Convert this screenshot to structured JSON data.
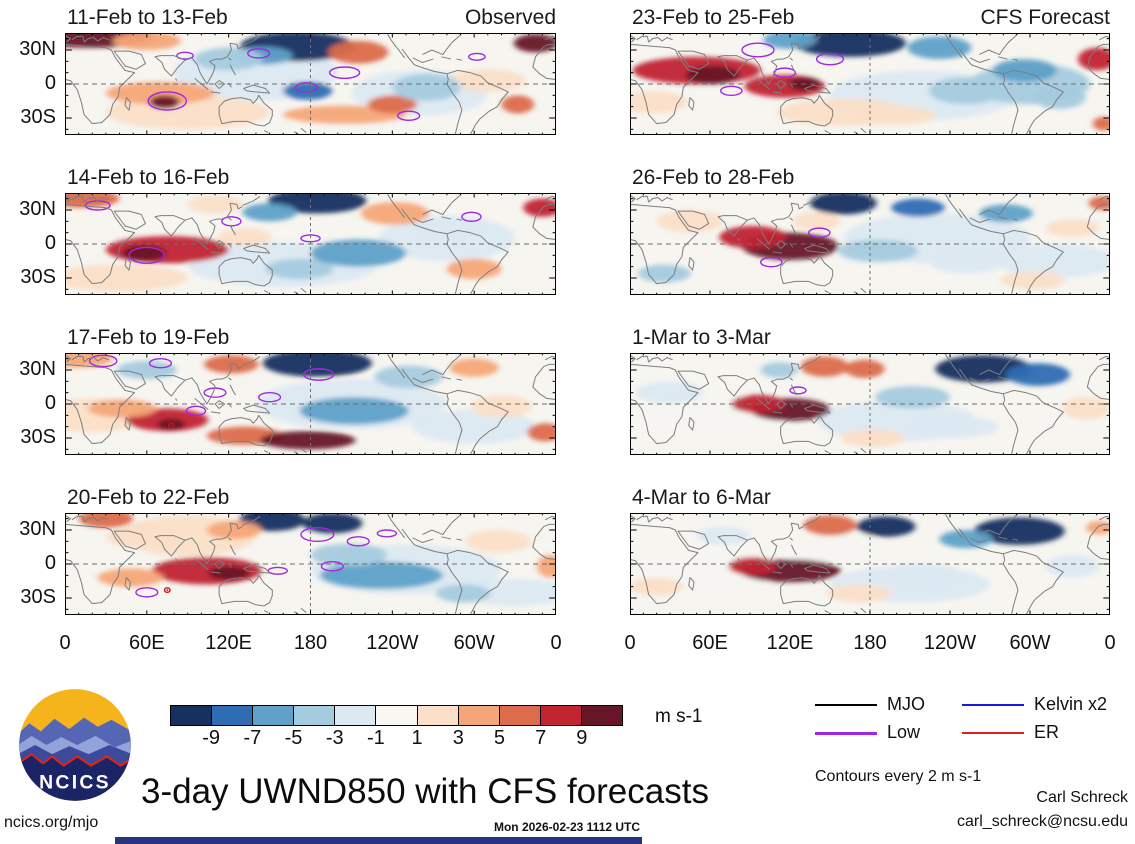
{
  "chart_data": {
    "type": "heatmap",
    "title": "3-day UWND850 with CFS forecasts",
    "contour_note": "Contours every 2 m s-1",
    "axes": {
      "x_ticks": [
        "0",
        "60E",
        "120E",
        "180",
        "120W",
        "60W",
        "0"
      ],
      "y_ticks": [
        "30N",
        "0",
        "30S"
      ],
      "y_tick_lats": [
        30,
        0,
        -30
      ],
      "lon_range": [
        0,
        360
      ],
      "lat_range": [
        -45,
        45
      ]
    },
    "colorbar": {
      "boundary_labels": [
        "-9",
        "-7",
        "-5",
        "-3",
        "-1",
        "1",
        "3",
        "5",
        "7",
        "9"
      ],
      "colors": [
        "#16305f",
        "#2e6db4",
        "#5fa1c9",
        "#a5cbdf",
        "#dce9f2",
        "#f7f6f1",
        "#fbdfc8",
        "#f5a678",
        "#dd6b4c",
        "#c22432",
        "#671527"
      ],
      "unit": "m s-1"
    },
    "map_colors": {
      "background": "#f6f5f0",
      "coastline": "#7d7d7d",
      "gridline": "#6e6e6e",
      "contour_low": "#a128e0",
      "marker": "#cc1111"
    },
    "legend": [
      {
        "label": "MJO",
        "color": "#000000",
        "width": 2
      },
      {
        "label": "Low",
        "color": "#a128e0",
        "width": 3
      },
      {
        "label": "Kelvin x2",
        "color": "#1a1ae6",
        "width": 2
      },
      {
        "label": "ER",
        "color": "#e02020",
        "width": 2
      }
    ],
    "panels": [
      {
        "title": "11-Feb to 13-Feb",
        "annotation": "Observed",
        "column": 0,
        "row": 0,
        "features": [
          [
            140,
            10,
            60,
            25,
            4
          ],
          [
            260,
            -8,
            50,
            20,
            4
          ],
          [
            90,
            -25,
            60,
            15,
            6
          ],
          [
            18,
            42,
            48,
            10,
            10
          ],
          [
            60,
            38,
            25,
            8,
            7
          ],
          [
            170,
            33,
            42,
            13,
            0
          ],
          [
            145,
            25,
            22,
            8,
            2
          ],
          [
            215,
            28,
            22,
            10,
            8
          ],
          [
            120,
            22,
            25,
            10,
            3
          ],
          [
            70,
            -8,
            40,
            10,
            7
          ],
          [
            73,
            -16,
            11,
            6,
            10
          ],
          [
            178,
            -6,
            18,
            8,
            1
          ],
          [
            205,
            -27,
            45,
            8,
            7
          ],
          [
            240,
            -18,
            18,
            8,
            8
          ],
          [
            345,
            36,
            16,
            8,
            10
          ],
          [
            310,
            3,
            28,
            10,
            6
          ],
          [
            265,
            -3,
            25,
            12,
            3
          ],
          [
            332,
            -18,
            12,
            8,
            8
          ]
        ],
        "contours": [
          [
            75,
            -15,
            14,
            8
          ],
          [
            142,
            27,
            8,
            4
          ],
          [
            205,
            10,
            11,
            5
          ],
          [
            177,
            -3,
            8,
            4
          ],
          [
            252,
            -28,
            8,
            4
          ],
          [
            302,
            24,
            6,
            3
          ],
          [
            88,
            25,
            6,
            3
          ]
        ],
        "markers": []
      },
      {
        "title": "14-Feb to 16-Feb",
        "annotation": "",
        "column": 0,
        "row": 1,
        "features": [
          [
            160,
            -18,
            70,
            20,
            4
          ],
          [
            280,
            5,
            50,
            20,
            4
          ],
          [
            40,
            -30,
            50,
            12,
            6
          ],
          [
            12,
            40,
            28,
            8,
            8
          ],
          [
            185,
            38,
            36,
            11,
            0
          ],
          [
            150,
            28,
            20,
            8,
            2
          ],
          [
            75,
            -5,
            45,
            12,
            9
          ],
          [
            58,
            -8,
            16,
            7,
            10
          ],
          [
            132,
            6,
            20,
            8,
            6
          ],
          [
            172,
            -22,
            25,
            9,
            3
          ],
          [
            215,
            -8,
            35,
            12,
            2
          ],
          [
            242,
            27,
            25,
            10,
            7
          ],
          [
            300,
            -22,
            20,
            9,
            7
          ],
          [
            350,
            32,
            14,
            8,
            9
          ],
          [
            282,
            12,
            24,
            10,
            4
          ],
          [
            110,
            35,
            20,
            8,
            6
          ]
        ],
        "contours": [
          [
            60,
            -10,
            13,
            7
          ],
          [
            122,
            20,
            7,
            4
          ],
          [
            298,
            24,
            7,
            4
          ],
          [
            24,
            34,
            9,
            4
          ],
          [
            180,
            5,
            7,
            3
          ]
        ],
        "markers": []
      },
      {
        "title": "17-Feb to 19-Feb",
        "annotation": "",
        "column": 0,
        "row": 2,
        "features": [
          [
            210,
            0,
            70,
            22,
            4
          ],
          [
            300,
            -20,
            45,
            15,
            4
          ],
          [
            20,
            -10,
            40,
            15,
            6
          ],
          [
            10,
            40,
            25,
            8,
            7
          ],
          [
            185,
            36,
            40,
            12,
            0
          ],
          [
            122,
            35,
            20,
            8,
            8
          ],
          [
            75,
            -14,
            30,
            10,
            9
          ],
          [
            78,
            -18,
            10,
            5,
            10
          ],
          [
            42,
            -4,
            25,
            8,
            7
          ],
          [
            132,
            -28,
            28,
            8,
            8
          ],
          [
            178,
            -32,
            35,
            8,
            10
          ],
          [
            212,
            -6,
            40,
            12,
            2
          ],
          [
            252,
            24,
            25,
            10,
            3
          ],
          [
            320,
            -2,
            22,
            10,
            6
          ],
          [
            352,
            -25,
            13,
            8,
            8
          ],
          [
            300,
            32,
            18,
            8,
            7
          ],
          [
            60,
            30,
            22,
            8,
            3
          ]
        ],
        "contours": [
          [
            28,
            38,
            10,
            5
          ],
          [
            70,
            36,
            8,
            4
          ],
          [
            110,
            10,
            8,
            4
          ],
          [
            150,
            6,
            8,
            4
          ],
          [
            186,
            26,
            11,
            5
          ],
          [
            96,
            -6,
            7,
            4
          ]
        ],
        "markers": [
          [
            78,
            -19
          ]
        ]
      },
      {
        "title": "20-Feb to 22-Feb",
        "annotation": "",
        "column": 0,
        "row": 3,
        "features": [
          [
            250,
            -5,
            70,
            22,
            4
          ],
          [
            90,
            25,
            50,
            18,
            6
          ],
          [
            330,
            -25,
            40,
            12,
            4
          ],
          [
            152,
            39,
            24,
            10,
            0
          ],
          [
            196,
            36,
            22,
            9,
            0
          ],
          [
            124,
            30,
            20,
            8,
            7
          ],
          [
            58,
            24,
            28,
            10,
            6
          ],
          [
            104,
            -6,
            40,
            12,
            9
          ],
          [
            120,
            -8,
            15,
            6,
            10
          ],
          [
            48,
            -12,
            24,
            8,
            7
          ],
          [
            232,
            -10,
            45,
            12,
            2
          ],
          [
            208,
            8,
            28,
            10,
            3
          ],
          [
            318,
            20,
            24,
            10,
            6
          ],
          [
            292,
            -26,
            20,
            8,
            3
          ],
          [
            356,
            -2,
            10,
            10,
            7
          ],
          [
            30,
            40,
            20,
            8,
            8
          ]
        ],
        "contours": [
          [
            185,
            26,
            12,
            6
          ],
          [
            215,
            20,
            8,
            4
          ],
          [
            236,
            27,
            7,
            3
          ],
          [
            196,
            -2,
            8,
            4
          ],
          [
            156,
            -6,
            7,
            3
          ],
          [
            60,
            -25,
            8,
            4
          ]
        ],
        "markers": [
          [
            75,
            -23
          ]
        ]
      },
      {
        "title": "23-Feb to 25-Feb",
        "annotation": "CFS Forecast",
        "column": 1,
        "row": 0,
        "features": [
          [
            220,
            -10,
            70,
            22,
            4
          ],
          [
            300,
            0,
            45,
            18,
            3
          ],
          [
            160,
            -25,
            50,
            12,
            6
          ],
          [
            165,
            36,
            42,
            12,
            0
          ],
          [
            120,
            39,
            20,
            8,
            2
          ],
          [
            50,
            12,
            48,
            12,
            9
          ],
          [
            62,
            8,
            20,
            8,
            10
          ],
          [
            116,
            -2,
            30,
            10,
            9
          ],
          [
            131,
            0,
            12,
            6,
            10
          ],
          [
            18,
            -16,
            25,
            10,
            6
          ],
          [
            232,
            32,
            24,
            10,
            2
          ],
          [
            252,
            -6,
            28,
            12,
            3
          ],
          [
            296,
            12,
            24,
            10,
            2
          ],
          [
            322,
            -12,
            20,
            10,
            3
          ],
          [
            350,
            22,
            14,
            10,
            9
          ],
          [
            200,
            -28,
            30,
            8,
            6
          ],
          [
            355,
            -35,
            8,
            6,
            8
          ]
        ],
        "contours": [
          [
            96,
            30,
            12,
            6
          ],
          [
            150,
            22,
            10,
            5
          ],
          [
            116,
            10,
            8,
            4
          ],
          [
            76,
            -6,
            8,
            4
          ]
        ],
        "markers": []
      },
      {
        "title": "26-Feb to 28-Feb",
        "annotation": "",
        "column": 1,
        "row": 1,
        "features": [
          [
            230,
            5,
            70,
            22,
            4
          ],
          [
            320,
            -15,
            45,
            15,
            4
          ],
          [
            60,
            -25,
            45,
            12,
            5
          ],
          [
            120,
            -2,
            36,
            12,
            10
          ],
          [
            92,
            6,
            25,
            10,
            9
          ],
          [
            160,
            36,
            25,
            10,
            0
          ],
          [
            216,
            32,
            20,
            8,
            1
          ],
          [
            45,
            20,
            25,
            10,
            6
          ],
          [
            186,
            -6,
            30,
            10,
            3
          ],
          [
            252,
            -16,
            28,
            10,
            4
          ],
          [
            282,
            27,
            20,
            8,
            2
          ],
          [
            332,
            14,
            20,
            8,
            6
          ],
          [
            302,
            -32,
            24,
            8,
            6
          ],
          [
            26,
            -26,
            20,
            8,
            3
          ],
          [
            354,
            36,
            10,
            6,
            8
          ],
          [
            140,
            20,
            18,
            8,
            6
          ]
        ],
        "contours": [
          [
            142,
            10,
            8,
            4
          ],
          [
            106,
            -16,
            8,
            4
          ]
        ],
        "markers": []
      },
      {
        "title": "1-Mar to 3-Mar",
        "annotation": "",
        "column": 1,
        "row": 2,
        "features": [
          [
            60,
            -10,
            60,
            20,
            5
          ],
          [
            200,
            -15,
            60,
            18,
            4
          ],
          [
            330,
            -20,
            35,
            12,
            5
          ],
          [
            146,
            33,
            18,
            9,
            8
          ],
          [
            176,
            31,
            15,
            8,
            8
          ],
          [
            120,
            -5,
            30,
            10,
            10
          ],
          [
            96,
            0,
            20,
            8,
            9
          ],
          [
            265,
            31,
            36,
            12,
            0
          ],
          [
            306,
            26,
            24,
            10,
            1
          ],
          [
            212,
            6,
            28,
            10,
            3
          ],
          [
            242,
            -20,
            34,
            10,
            4
          ],
          [
            30,
            10,
            25,
            10,
            4
          ],
          [
            342,
            -4,
            18,
            10,
            6
          ],
          [
            182,
            -30,
            24,
            8,
            6
          ],
          [
            112,
            30,
            14,
            7,
            3
          ]
        ],
        "contours": [
          [
            126,
            12,
            6,
            3
          ]
        ],
        "markers": []
      },
      {
        "title": "4-Mar to 6-Mar",
        "annotation": "",
        "column": 1,
        "row": 3,
        "features": [
          [
            55,
            -5,
            60,
            20,
            5
          ],
          [
            210,
            -18,
            60,
            16,
            4
          ],
          [
            150,
            15,
            40,
            15,
            5
          ],
          [
            150,
            34,
            20,
            9,
            8
          ],
          [
            192,
            33,
            22,
            9,
            0
          ],
          [
            120,
            -6,
            38,
            10,
            10
          ],
          [
            92,
            -2,
            18,
            8,
            9
          ],
          [
            292,
            29,
            34,
            12,
            0
          ],
          [
            252,
            22,
            20,
            8,
            2
          ],
          [
            218,
            -10,
            34,
            10,
            4
          ],
          [
            20,
            -20,
            20,
            8,
            6
          ],
          [
            332,
            -2,
            20,
            10,
            4
          ],
          [
            172,
            -26,
            24,
            8,
            6
          ],
          [
            352,
            32,
            10,
            6,
            7
          ],
          [
            70,
            25,
            20,
            8,
            4
          ]
        ],
        "contours": [],
        "markers": []
      }
    ]
  },
  "footer": {
    "site": "ncics.org/mjo",
    "timestamp": "Mon 2026-02-23 1112 UTC",
    "credit_name": "Carl Schreck",
    "credit_email": "carl_schreck@ncsu.edu",
    "logo_text": "NCICS"
  }
}
